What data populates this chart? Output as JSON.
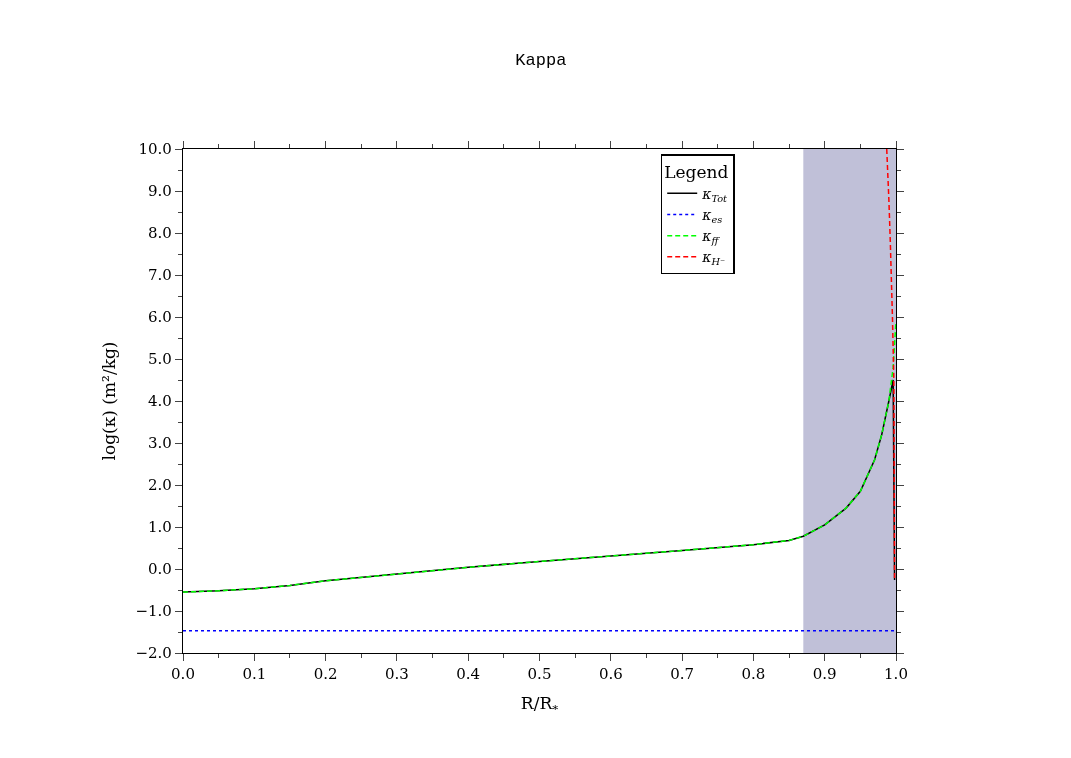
{
  "chart_data": {
    "type": "line",
    "title": "Kappa",
    "xlabel": "R/R$_{*}$",
    "ylabel": "log(κ) (m²/kg)",
    "legend_title": "Legend",
    "legend": "top right",
    "grid": false,
    "marker": "none",
    "xlim": [
      0,
      1
    ],
    "ylim": [
      -2,
      10
    ],
    "xticks": [
      {
        "value": 0,
        "label": "0.0"
      },
      {
        "value": 0.05,
        "label": null
      },
      {
        "value": 0.1,
        "label": "0.1"
      },
      {
        "value": 0.15,
        "label": null
      },
      {
        "value": 0.2,
        "label": "0.2"
      },
      {
        "value": 0.25,
        "label": null
      },
      {
        "value": 0.3,
        "label": "0.3"
      },
      {
        "value": 0.35,
        "label": null
      },
      {
        "value": 0.4,
        "label": "0.4"
      },
      {
        "value": 0.45,
        "label": null
      },
      {
        "value": 0.5,
        "label": "0.5"
      },
      {
        "value": 0.55,
        "label": null
      },
      {
        "value": 0.6,
        "label": "0.6"
      },
      {
        "value": 0.65,
        "label": null
      },
      {
        "value": 0.7,
        "label": "0.7"
      },
      {
        "value": 0.75,
        "label": null
      },
      {
        "value": 0.8,
        "label": "0.8"
      },
      {
        "value": 0.85,
        "label": null
      },
      {
        "value": 0.9,
        "label": "0.9"
      },
      {
        "value": 0.95,
        "label": null
      },
      {
        "value": 1,
        "label": "1.0"
      }
    ],
    "yticks": [
      {
        "value": -2,
        "label": "−2.0"
      },
      {
        "value": -1.5,
        "label": null
      },
      {
        "value": -1,
        "label": "−1.0"
      },
      {
        "value": -0.5,
        "label": null
      },
      {
        "value": 0,
        "label": "0.0"
      },
      {
        "value": 0.5,
        "label": null
      },
      {
        "value": 1,
        "label": "1.0"
      },
      {
        "value": 1.5,
        "label": null
      },
      {
        "value": 2,
        "label": "2.0"
      },
      {
        "value": 2.5,
        "label": null
      },
      {
        "value": 3,
        "label": "3.0"
      },
      {
        "value": 3.5,
        "label": null
      },
      {
        "value": 4,
        "label": "4.0"
      },
      {
        "value": 4.5,
        "label": null
      },
      {
        "value": 5,
        "label": "5.0"
      },
      {
        "value": 5.5,
        "label": null
      },
      {
        "value": 6,
        "label": "6.0"
      },
      {
        "value": 6.5,
        "label": null
      },
      {
        "value": 7,
        "label": "7.0"
      },
      {
        "value": 7.5,
        "label": null
      },
      {
        "value": 8,
        "label": "8.0"
      },
      {
        "value": 8.5,
        "label": null
      },
      {
        "value": 9,
        "label": "9.0"
      },
      {
        "value": 9.5,
        "label": null
      },
      {
        "value": 10,
        "label": "10.0"
      }
    ],
    "bands": [
      {
        "axis": "x",
        "from": 0.87,
        "to": 1,
        "color": "#c0c0d8"
      }
    ],
    "series": [
      {
        "name": "κ$_{Tot}$",
        "color": "#000000",
        "line_style": "solid",
        "x": [
          0,
          0.05,
          0.1,
          0.15,
          0.2,
          0.3,
          0.4,
          0.5,
          0.6,
          0.7,
          0.8,
          0.85,
          0.87,
          0.9,
          0.93,
          0.95,
          0.97,
          0.98,
          0.99,
          0.996,
          0.998
        ],
        "values": [
          -0.55,
          -0.52,
          -0.47,
          -0.39,
          -0.28,
          -0.12,
          0.04,
          0.18,
          0.31,
          0.44,
          0.58,
          0.68,
          0.78,
          1.05,
          1.45,
          1.85,
          2.6,
          3.2,
          4.0,
          4.5,
          -0.26
        ]
      },
      {
        "name": "κ$_{es}$",
        "color": "#0000ff",
        "line_style": "dotted",
        "x": [
          0,
          1
        ],
        "values": [
          -1.47,
          -1.47
        ]
      },
      {
        "name": "κ$_{ff}$",
        "color": "#00ff00",
        "line_style": "dashed",
        "x": [
          0,
          0.05,
          0.1,
          0.15,
          0.2,
          0.3,
          0.4,
          0.5,
          0.6,
          0.7,
          0.8,
          0.85,
          0.87,
          0.9,
          0.93,
          0.95,
          0.97,
          0.98,
          0.99,
          0.996,
          1.0
        ],
        "values": [
          -0.55,
          -0.52,
          -0.47,
          -0.39,
          -0.28,
          -0.12,
          0.04,
          0.18,
          0.31,
          0.44,
          0.58,
          0.68,
          0.78,
          1.05,
          1.45,
          1.85,
          2.6,
          3.2,
          4.0,
          4.8,
          5.9
        ]
      },
      {
        "name": "κ$_{H⁻}$",
        "color": "#ff0000",
        "line_style": "dashed",
        "x": [
          0.987,
          0.99,
          0.992,
          0.995,
          0.997,
          0.998
        ],
        "values": [
          10,
          8.8,
          7.8,
          6.0,
          4.5,
          -0.26
        ]
      }
    ]
  }
}
